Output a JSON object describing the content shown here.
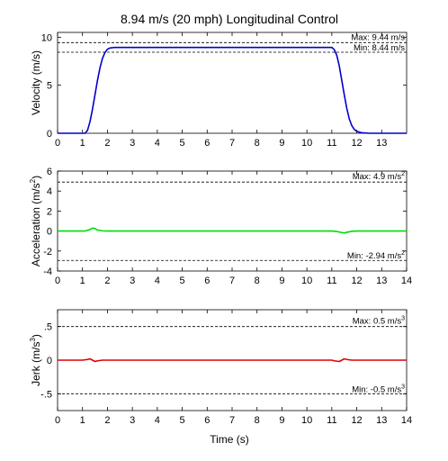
{
  "figure": {
    "title": "8.94 m/s (20 mph) Longitudinal Control",
    "xlabel": "Time (s)"
  },
  "chart_data": [
    {
      "type": "line",
      "ylabel": "Velocity (m/s)",
      "ylabel_sup": "",
      "ylabel_tail": "",
      "xlim": [
        0,
        14
      ],
      "ylim": [
        0,
        10.5
      ],
      "xticks": [
        0,
        1,
        2,
        3,
        4,
        5,
        6,
        7,
        8,
        9,
        10,
        11,
        12,
        13
      ],
      "yticks": [
        0,
        5,
        10
      ],
      "color": "#0000cc",
      "limits": [
        {
          "value": 9.44,
          "label": "Max: 9.44 m/s",
          "sup": ""
        },
        {
          "value": 8.44,
          "label": "Min: 8.44 m/s",
          "sup": ""
        }
      ],
      "series": [
        {
          "x": [
            0,
            1.1,
            1.2,
            1.3,
            1.4,
            1.5,
            1.6,
            1.7,
            1.8,
            1.9,
            2.0,
            2.1,
            2.3,
            2.6,
            3,
            11,
            11.1,
            11.2,
            11.3,
            11.4,
            11.5,
            11.6,
            11.7,
            11.8,
            11.9,
            12.0,
            12.2,
            12.5,
            14
          ],
          "y": [
            0,
            0,
            0.3,
            1.2,
            2.5,
            4.0,
            5.5,
            6.8,
            7.8,
            8.4,
            8.75,
            8.88,
            8.94,
            8.94,
            8.94,
            8.94,
            8.7,
            8.1,
            7.0,
            5.5,
            4.0,
            2.6,
            1.5,
            0.8,
            0.4,
            0.2,
            0.05,
            0,
            0
          ]
        }
      ]
    },
    {
      "type": "line",
      "ylabel": "Acceleration (m/s",
      "ylabel_sup": "2",
      "ylabel_tail": ")",
      "xlim": [
        0,
        14
      ],
      "ylim": [
        -4,
        6
      ],
      "xticks": [
        0,
        1,
        2,
        3,
        4,
        5,
        6,
        7,
        8,
        9,
        10,
        11,
        12,
        13,
        14
      ],
      "yticks": [
        -4,
        -2,
        0,
        2,
        4,
        6
      ],
      "color": "#00dd00",
      "limits": [
        {
          "value": 4.9,
          "label": "Max: 4.9 m/s",
          "sup": "2"
        },
        {
          "value": -2.94,
          "label": "Min: -2.94 m/s",
          "sup": "2"
        }
      ],
      "series": [
        {
          "x": [
            0,
            1.1,
            1.3,
            1.4,
            1.5,
            1.6,
            1.8,
            2.0,
            3,
            11,
            11.2,
            11.4,
            11.5,
            11.6,
            11.8,
            12,
            14
          ],
          "y": [
            0,
            0,
            0.15,
            0.3,
            0.25,
            0.1,
            0.02,
            0,
            0,
            0,
            -0.05,
            -0.15,
            -0.2,
            -0.12,
            -0.03,
            0,
            0
          ]
        }
      ]
    },
    {
      "type": "line",
      "ylabel": "Jerk (m/s",
      "ylabel_sup": "3",
      "ylabel_tail": ")",
      "xlim": [
        0,
        14
      ],
      "ylim": [
        -0.75,
        0.75
      ],
      "xticks": [
        0,
        1,
        2,
        3,
        4,
        5,
        6,
        7,
        8,
        9,
        10,
        11,
        12,
        13,
        14
      ],
      "yticks": [
        -0.5,
        0,
        0.5
      ],
      "color": "#dd0000",
      "limits": [
        {
          "value": 0.5,
          "label": "Max: 0.5 m/s",
          "sup": "3"
        },
        {
          "value": -0.5,
          "label": "Min: -0.5 m/s",
          "sup": "3"
        }
      ],
      "series": [
        {
          "x": [
            0,
            1.0,
            1.2,
            1.3,
            1.4,
            1.5,
            1.6,
            1.8,
            3,
            11,
            11.1,
            11.3,
            11.4,
            11.5,
            11.6,
            11.8,
            14
          ],
          "y": [
            0,
            0,
            0.01,
            0.02,
            0.0,
            -0.02,
            -0.01,
            0,
            0,
            0,
            -0.01,
            -0.02,
            0.0,
            0.02,
            0.01,
            0,
            0
          ]
        }
      ]
    }
  ]
}
